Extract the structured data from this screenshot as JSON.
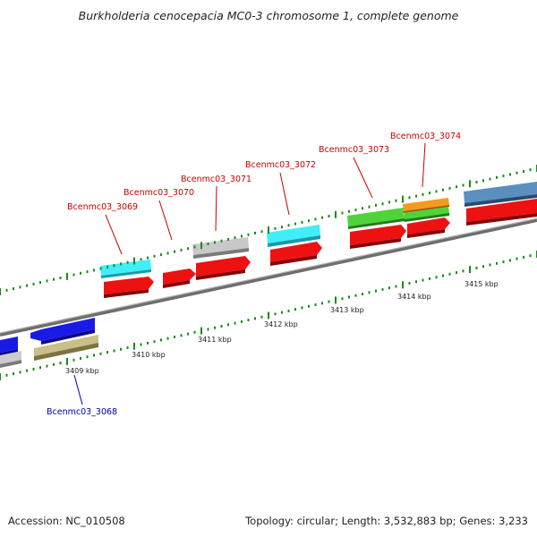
{
  "title": "Burkholderia cenocepacia MC0-3 chromosome 1, complete genome",
  "footer": {
    "accession": "Accession: NC_010508",
    "summary": "Topology: circular; Length: 3,532,883 bp; Genes: 3,233"
  },
  "colors": {
    "backbone": "#8a8a8a",
    "tick": "#1a8a1a",
    "forward_label": "#cc0000",
    "reverse_label": "#0000aa"
  },
  "ticks": [
    {
      "label": "3409 kbp"
    },
    {
      "label": "3410 kbp"
    },
    {
      "label": "3411 kbp"
    },
    {
      "label": "3412 kbp"
    },
    {
      "label": "3413 kbp"
    },
    {
      "label": "3414 kbp"
    },
    {
      "label": "3415 kbp"
    }
  ],
  "gene_labels": [
    {
      "text": "Bcenmc03_3068",
      "strand": "reverse"
    },
    {
      "text": "Bcenmc03_3069",
      "strand": "forward"
    },
    {
      "text": "Bcenmc03_3070",
      "strand": "forward"
    },
    {
      "text": "Bcenmc03_3071",
      "strand": "forward"
    },
    {
      "text": "Bcenmc03_3072",
      "strand": "forward"
    },
    {
      "text": "Bcenmc03_3073",
      "strand": "forward"
    },
    {
      "text": "Bcenmc03_3074",
      "strand": "forward"
    }
  ],
  "features": [
    {
      "kind": "blue-gene-reverse",
      "color": "#1a1ae6"
    },
    {
      "kind": "olive-gene-reverse",
      "color": "#b8b070"
    },
    {
      "kind": "blue-gene-reverse-partial",
      "color": "#1a1ae6"
    },
    {
      "kind": "grey-gene-reverse-partial",
      "color": "#c0c0c0"
    },
    {
      "kind": "cyan-cds",
      "color": "#33e6f0"
    },
    {
      "kind": "grey-cds",
      "color": "#c0c0c0"
    },
    {
      "kind": "cyan-cds",
      "color": "#33e6f0"
    },
    {
      "kind": "green-cds",
      "color": "#44cc33"
    },
    {
      "kind": "orange-cds",
      "color": "#f08a1a"
    },
    {
      "kind": "green-cds",
      "color": "#44cc33"
    },
    {
      "kind": "steel-blue-cds",
      "color": "#4a7fb0"
    },
    {
      "kind": "red-gene-forward",
      "color": "#ee1111"
    }
  ]
}
